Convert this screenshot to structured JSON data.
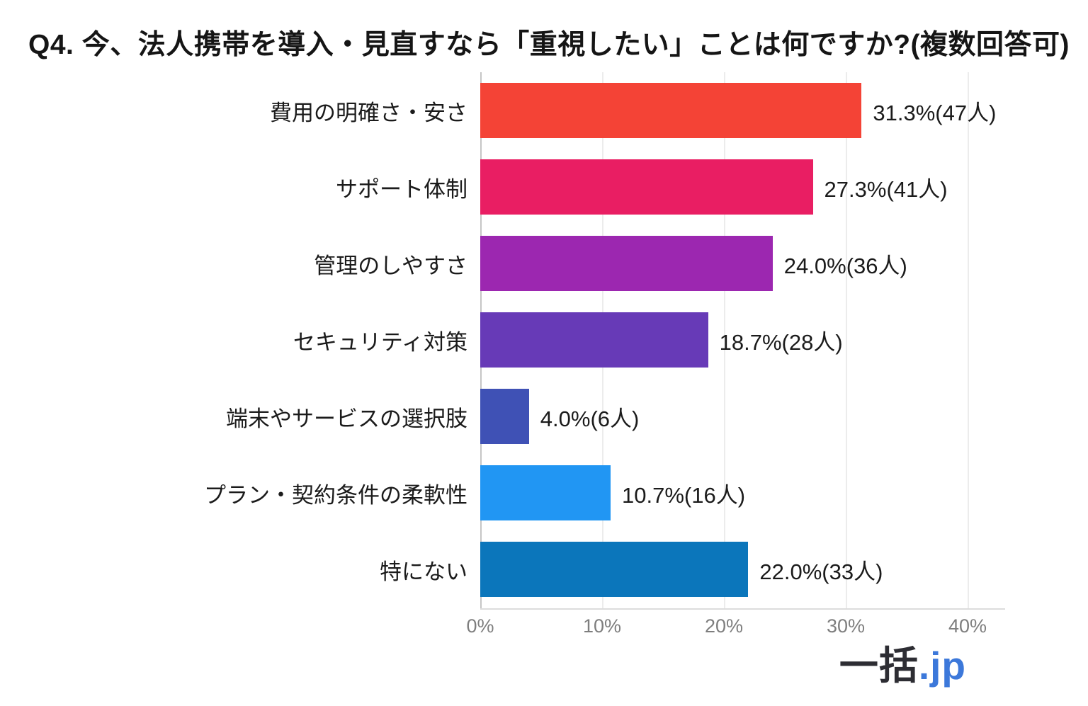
{
  "title": "Q4. 今、法人携帯を導入・見直すなら「重視したい」ことは何ですか?(複数回答可)",
  "chart_data": {
    "type": "bar",
    "orientation": "horizontal",
    "title": "Q4. 今、法人携帯を導入・見直すなら「重視したい」ことは何ですか?(複数回答可)",
    "categories": [
      "費用の明確さ・安さ",
      "サポート体制",
      "管理のしやすさ",
      "セキュリティ対策",
      "端末やサービスの選択肢",
      "プラン・契約条件の柔軟性",
      "特にない"
    ],
    "values": [
      31.3,
      27.3,
      24.0,
      18.7,
      4.0,
      10.7,
      22.0
    ],
    "counts": [
      47,
      41,
      36,
      28,
      6,
      16,
      33
    ],
    "value_labels": [
      "31.3%(47人)",
      "27.3%(41人)",
      "24.0%(36人)",
      "18.7%(28人)",
      "4.0%(6人)",
      "10.7%(16人)",
      "22.0%(33人)"
    ],
    "bar_colors": [
      "#f44336",
      "#e91e63",
      "#9c27b0",
      "#673ab7",
      "#3f51b5",
      "#2196f3",
      "#0b76bb"
    ],
    "x_ticks": [
      "0%",
      "10%",
      "20%",
      "30%",
      "40%"
    ],
    "x_tick_values": [
      0,
      10,
      20,
      30,
      40
    ],
    "xlim": [
      0,
      43
    ],
    "xlabel": "",
    "ylabel": "",
    "grid": true,
    "legend": false
  },
  "logo": {
    "text_black": "一括",
    "text_blue": ".jp",
    "blue_color": "#3c78da"
  }
}
